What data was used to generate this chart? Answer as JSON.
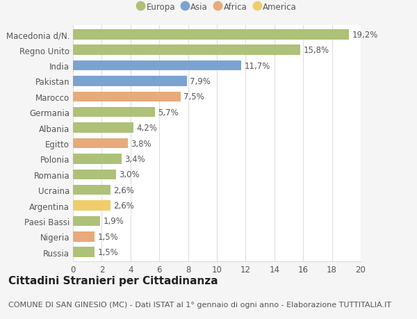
{
  "countries": [
    "Macedonia d/N.",
    "Regno Unito",
    "India",
    "Pakistan",
    "Marocco",
    "Germania",
    "Albania",
    "Egitto",
    "Polonia",
    "Romania",
    "Ucraina",
    "Argentina",
    "Paesi Bassi",
    "Nigeria",
    "Russia"
  ],
  "values": [
    19.2,
    15.8,
    11.7,
    7.9,
    7.5,
    5.7,
    4.2,
    3.8,
    3.4,
    3.0,
    2.6,
    2.6,
    1.9,
    1.5,
    1.5
  ],
  "labels": [
    "19,2%",
    "15,8%",
    "11,7%",
    "7,9%",
    "7,5%",
    "5,7%",
    "4,2%",
    "3,8%",
    "3,4%",
    "3,0%",
    "2,6%",
    "2,6%",
    "1,9%",
    "1,5%",
    "1,5%"
  ],
  "continents": [
    "Europa",
    "Europa",
    "Asia",
    "Asia",
    "Africa",
    "Europa",
    "Europa",
    "Africa",
    "Europa",
    "Europa",
    "Europa",
    "America",
    "Europa",
    "Africa",
    "Europa"
  ],
  "continent_colors": {
    "Europa": "#adc178",
    "Asia": "#7ba3d0",
    "Africa": "#e8aa7a",
    "America": "#f0cc6a"
  },
  "legend_order": [
    "Europa",
    "Asia",
    "Africa",
    "America"
  ],
  "title": "Cittadini Stranieri per Cittadinanza",
  "subtitle": "COMUNE DI SAN GINESIO (MC) - Dati ISTAT al 1° gennaio di ogni anno - Elaborazione TUTTITALIA.IT",
  "xlim": [
    0,
    20
  ],
  "xticks": [
    0,
    2,
    4,
    6,
    8,
    10,
    12,
    14,
    16,
    18,
    20
  ],
  "background_color": "#f5f5f5",
  "plot_background": "#ffffff",
  "grid_color": "#dddddd",
  "bar_height": 0.65,
  "label_fontsize": 8.5,
  "tick_fontsize": 8.5,
  "title_fontsize": 11,
  "subtitle_fontsize": 8
}
